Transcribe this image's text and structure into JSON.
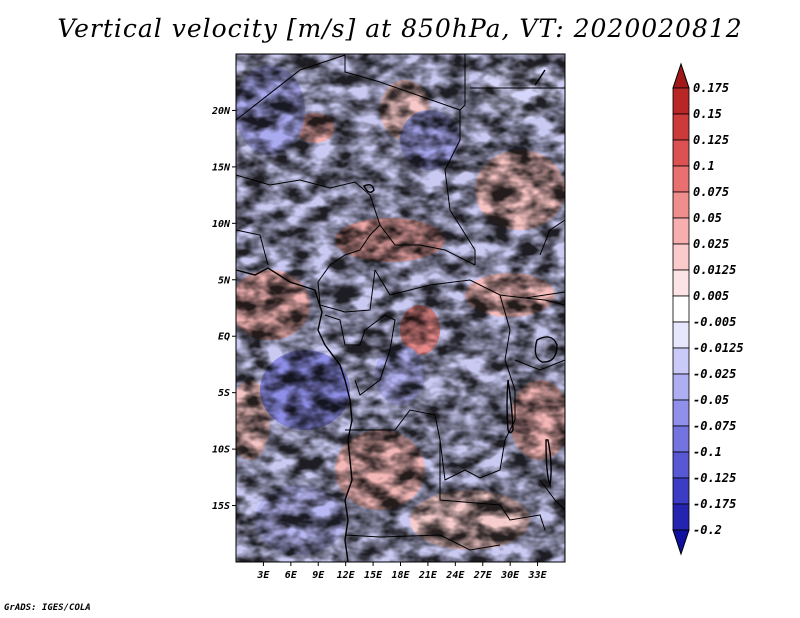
{
  "title": "Vertical velocity [m/s] at 850hPa, VT: 2020020812",
  "footer": "GrADS: IGES/COLA",
  "chart_data": {
    "type": "heatmap",
    "variable": "Vertical velocity",
    "units": "m/s",
    "level": "850hPa",
    "valid_time": "2020020812",
    "lon_range": [
      0,
      36
    ],
    "lat_range": [
      -20,
      25
    ],
    "x_ticks": [
      "3E",
      "6E",
      "9E",
      "12E",
      "15E",
      "18E",
      "21E",
      "24E",
      "27E",
      "30E",
      "33E"
    ],
    "x_tick_values": [
      3,
      6,
      9,
      12,
      15,
      18,
      21,
      24,
      27,
      30,
      33
    ],
    "y_ticks": [
      "20N",
      "15N",
      "10N",
      "5N",
      "EQ",
      "5S",
      "10S",
      "15S"
    ],
    "y_tick_values": [
      20,
      15,
      10,
      5,
      0,
      -5,
      -10,
      -15
    ],
    "colorbar": {
      "labels": [
        "0.175",
        "0.15",
        "0.125",
        "0.1",
        "0.075",
        "0.05",
        "0.025",
        "0.0125",
        "0.005",
        "-0.005",
        "-0.0125",
        "-0.025",
        "-0.05",
        "-0.075",
        "-0.1",
        "-0.125",
        "-0.175",
        "-0.2"
      ],
      "colors": [
        "#a01818",
        "#b82626",
        "#cc3a3a",
        "#dc5252",
        "#e87070",
        "#f08e8e",
        "#f6aeae",
        "#fbcaca",
        "#fde4e4",
        "#ffffff",
        "#e6e6fd",
        "#cacaf8",
        "#aeaef2",
        "#9090ea",
        "#7474e0",
        "#5858d4",
        "#3c3cc4",
        "#2424b0",
        "#1010a0"
      ]
    }
  }
}
